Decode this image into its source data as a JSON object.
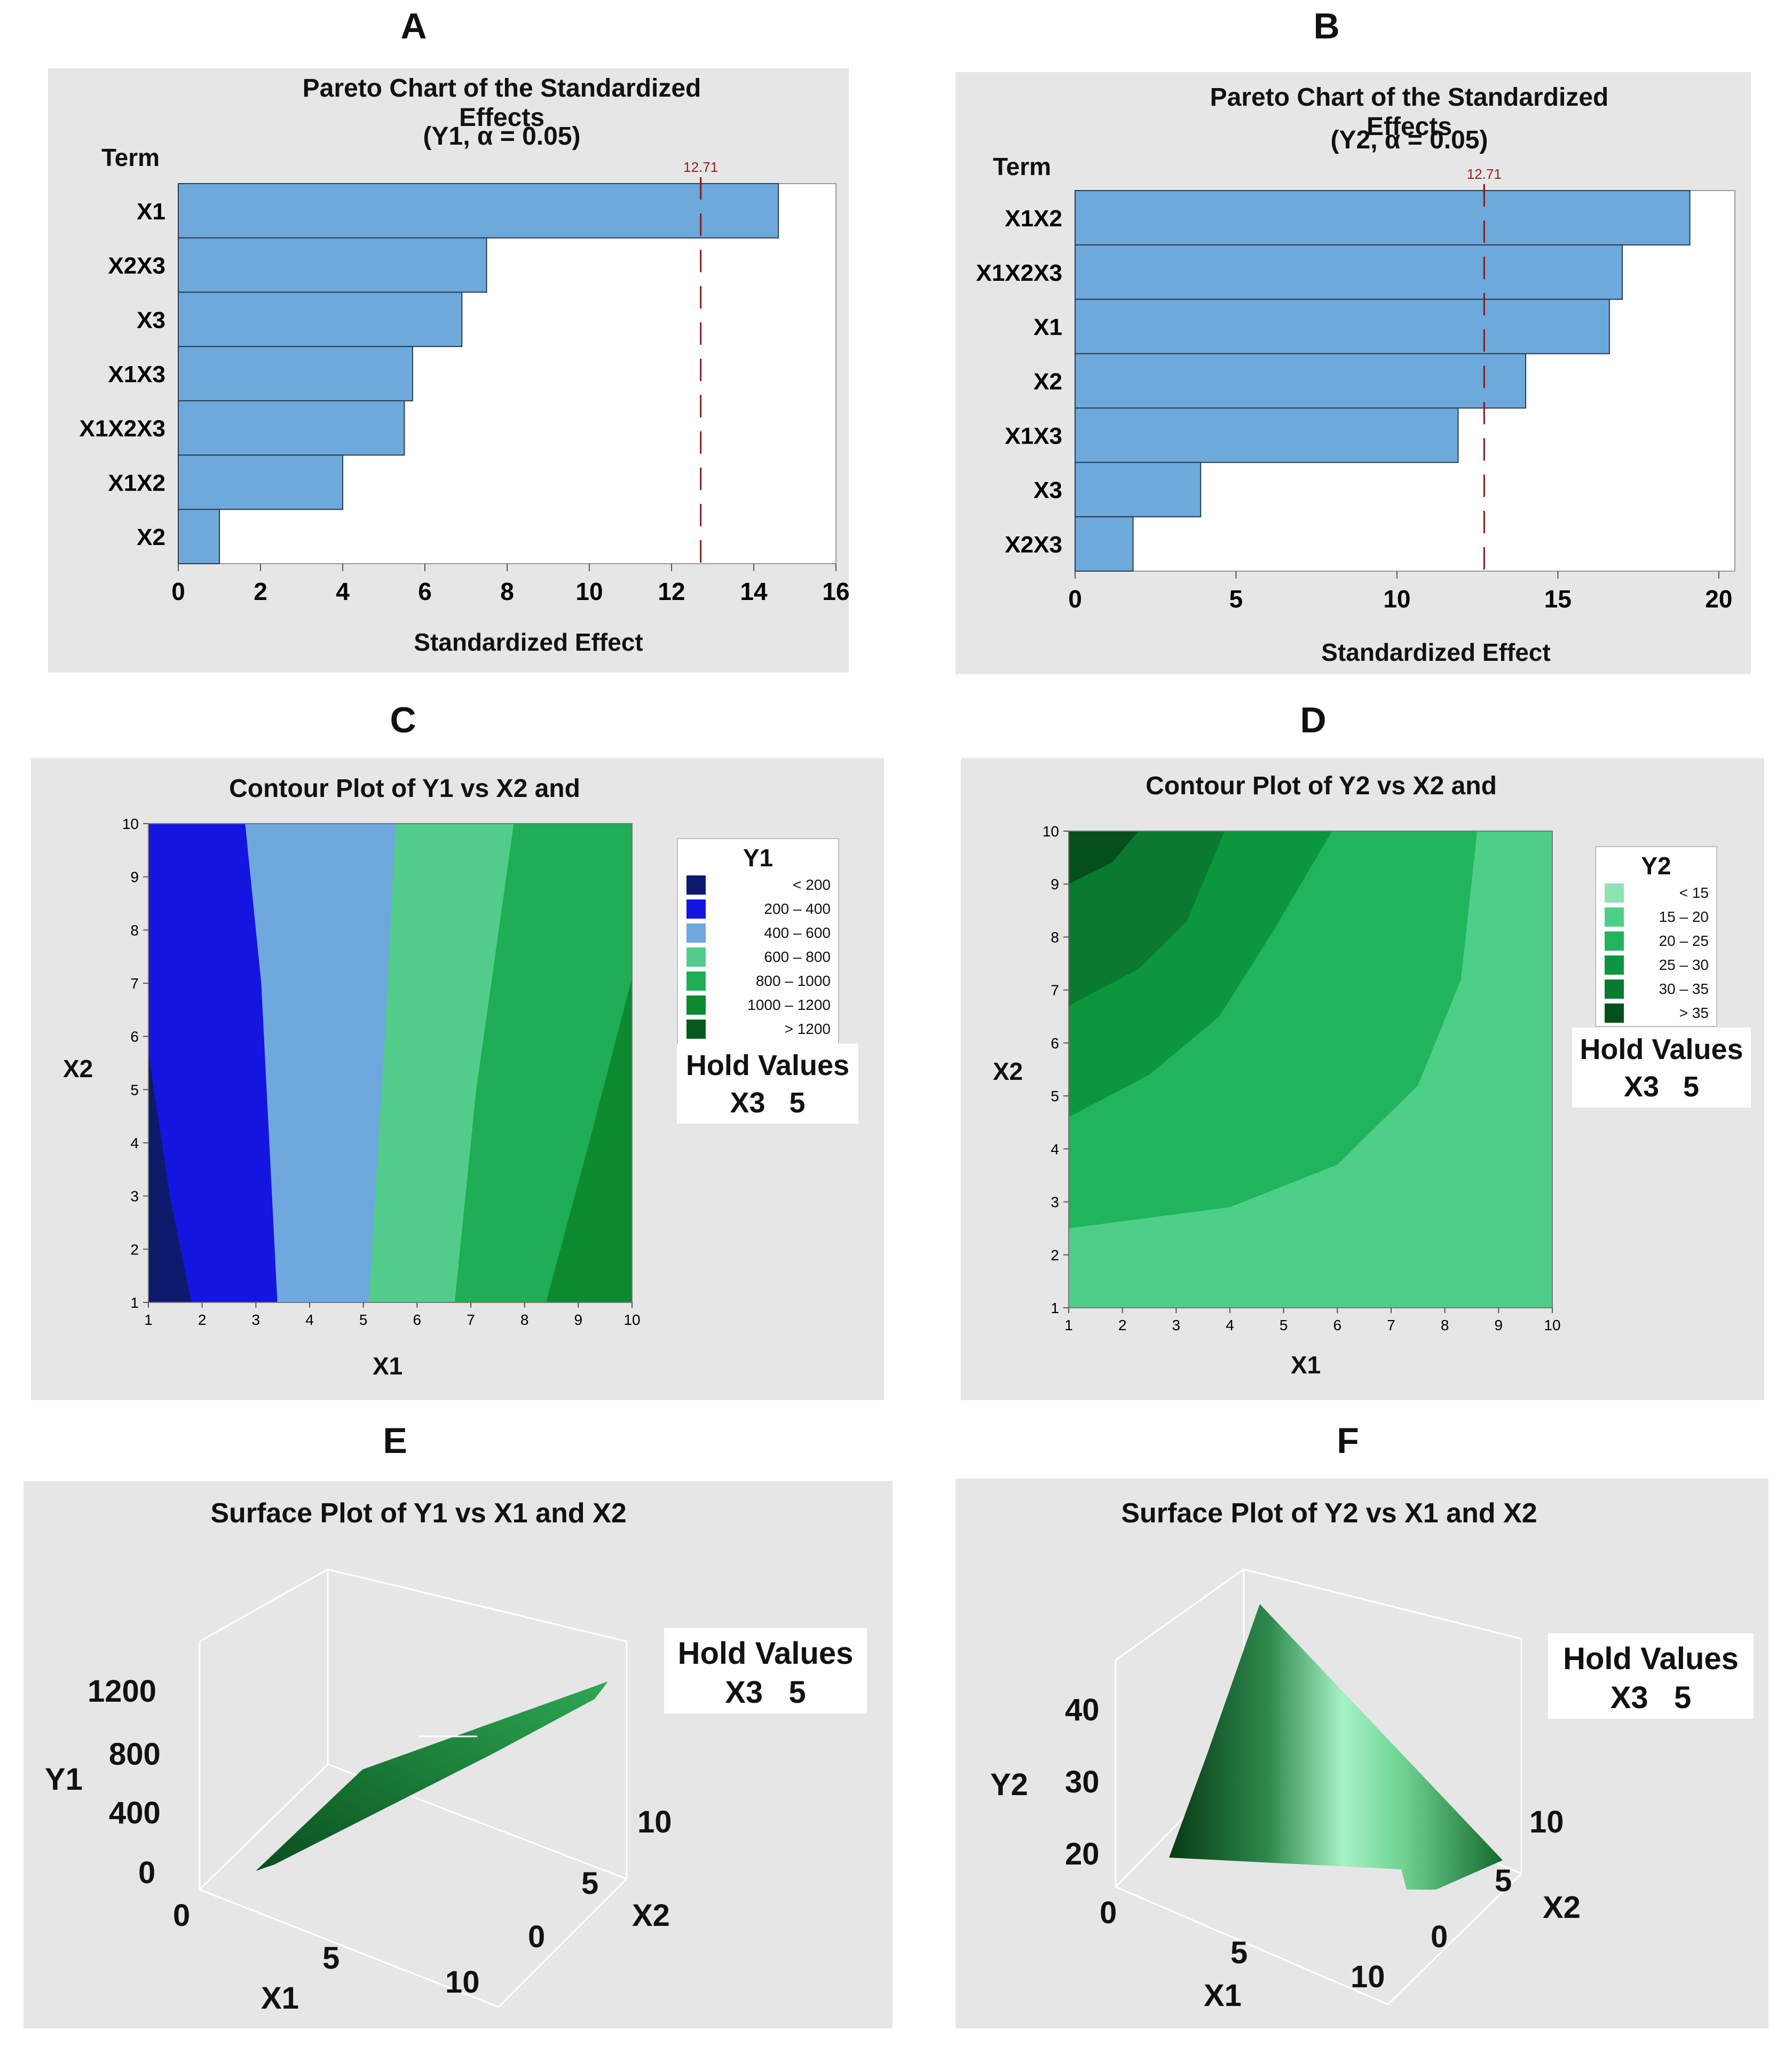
{
  "panel_letters": [
    "A",
    "B",
    "C",
    "D",
    "E",
    "F"
  ],
  "hold_values": {
    "title": "Hold Values",
    "text": "X3   5"
  },
  "chart_data": [
    {
      "id": "A",
      "type": "bar",
      "orientation": "horizontal",
      "title": "Pareto Chart of the Standardized Effects",
      "subtitle": "(Y1, α = 0.05)",
      "ylabel": "Term",
      "xlabel": "Standardized Effect",
      "categories": [
        "X1",
        "X2X3",
        "X3",
        "X1X3",
        "X1X2X3",
        "X1X2",
        "X2"
      ],
      "values": [
        14.6,
        7.5,
        6.9,
        5.7,
        5.5,
        4.0,
        1.0
      ],
      "reference_line": {
        "value": 12.71,
        "label": "12.71"
      },
      "xlim": [
        0,
        16
      ],
      "xticks": [
        "0",
        "2",
        "4",
        "6",
        "8",
        "10",
        "12",
        "14",
        "16"
      ],
      "bar_color": "#6ea9dc"
    },
    {
      "id": "B",
      "type": "bar",
      "orientation": "horizontal",
      "title": "Pareto Chart of the Standardized Effects",
      "subtitle": "(Y2, α = 0.05)",
      "ylabel": "Term",
      "xlabel": "Standardized Effect",
      "categories": [
        "X1X2",
        "X1X2X3",
        "X1",
        "X2",
        "X1X3",
        "X3",
        "X2X3"
      ],
      "values": [
        19.1,
        17.0,
        16.6,
        14.0,
        11.9,
        3.9,
        1.8
      ],
      "reference_line": {
        "value": 12.71,
        "label": "12.71"
      },
      "xlim": [
        0,
        20.5
      ],
      "xticks": [
        "0",
        "5",
        "10",
        "15",
        "20"
      ],
      "bar_color": "#6ea9dc"
    },
    {
      "id": "C",
      "type": "contour",
      "title": "Contour Plot of Y1 vs X2 and",
      "xlabel": "X1",
      "ylabel": "X2",
      "xlim": [
        1,
        10
      ],
      "ylim": [
        1,
        10
      ],
      "xticks": [
        "1",
        "2",
        "3",
        "4",
        "5",
        "6",
        "7",
        "8",
        "9",
        "10"
      ],
      "yticks": [
        "1",
        "2",
        "3",
        "4",
        "5",
        "6",
        "7",
        "8",
        "9",
        "10"
      ],
      "legend_title": "Y1",
      "levels": [
        {
          "label": "< 200",
          "lo": "<",
          "hi": "200",
          "color": "#0d1a6b"
        },
        {
          "label": "200 – 400",
          "lo": "200",
          "hi": "400",
          "color": "#1515e0"
        },
        {
          "label": "400 – 600",
          "lo": "400",
          "hi": "600",
          "color": "#6fa8dc"
        },
        {
          "label": "600 – 800",
          "lo": "600",
          "hi": "800",
          "color": "#52cc8a"
        },
        {
          "label": "800 – 1000",
          "lo": "800",
          "hi": "1000",
          "color": "#1fad55"
        },
        {
          "label": "1000 – 1200",
          "lo": "1000",
          "hi": "1200",
          "color": "#0d8a2f"
        },
        {
          "label": "> 1200",
          "lo": ">",
          "hi": "1200",
          "color": "#065a1f"
        }
      ],
      "boundaries": [
        {
          "level": "200",
          "points": [
            [
              1,
              5.7
            ],
            [
              1.4,
              3
            ],
            [
              1.8,
              1
            ]
          ]
        },
        {
          "level": "400",
          "points": [
            [
              2.8,
              10
            ],
            [
              3.1,
              7
            ],
            [
              3.4,
              1
            ]
          ]
        },
        {
          "level": "600",
          "points": [
            [
              5.6,
              10
            ],
            [
              5.4,
              6
            ],
            [
              5.1,
              1
            ]
          ]
        },
        {
          "level": "800",
          "points": [
            [
              7.8,
              10
            ],
            [
              7.1,
              5
            ],
            [
              6.7,
              1
            ]
          ]
        },
        {
          "level": "1000",
          "points": [
            [
              10,
              7.1
            ],
            [
              9.2,
              4
            ],
            [
              8.4,
              1
            ]
          ]
        }
      ]
    },
    {
      "id": "D",
      "type": "contour",
      "title": "Contour Plot of Y2 vs X2 and",
      "xlabel": "X1",
      "ylabel": "X2",
      "xlim": [
        1,
        10
      ],
      "ylim": [
        1,
        10
      ],
      "xticks": [
        "1",
        "2",
        "3",
        "4",
        "5",
        "6",
        "7",
        "8",
        "9",
        "10"
      ],
      "yticks": [
        "1",
        "2",
        "3",
        "4",
        "5",
        "6",
        "7",
        "8",
        "9",
        "10"
      ],
      "legend_title": "Y2",
      "levels": [
        {
          "label": "< 15",
          "lo": "<",
          "hi": "15",
          "color": "#8ee3b0"
        },
        {
          "label": "15 – 20",
          "lo": "15",
          "hi": "20",
          "color": "#4dcf88"
        },
        {
          "label": "20 – 25",
          "lo": "20",
          "hi": "25",
          "color": "#20b55c"
        },
        {
          "label": "25 – 30",
          "lo": "25",
          "hi": "30",
          "color": "#0c963e"
        },
        {
          "label": "30 – 35",
          "lo": "30",
          "hi": "35",
          "color": "#097a30"
        },
        {
          "label": "> 35",
          "lo": ">",
          "hi": "35",
          "color": "#054f1d"
        }
      ],
      "boundaries": [
        {
          "level": "20",
          "points": [
            [
              1,
              2.5
            ],
            [
              4,
              2.9
            ],
            [
              6,
              3.7
            ],
            [
              7.5,
              5.2
            ],
            [
              8.3,
              7.2
            ],
            [
              8.6,
              10
            ]
          ]
        },
        {
          "level": "25",
          "points": [
            [
              1,
              4.6
            ],
            [
              2.5,
              5.4
            ],
            [
              3.8,
              6.5
            ],
            [
              4.8,
              8.1
            ],
            [
              5.9,
              10
            ]
          ]
        },
        {
          "level": "30",
          "points": [
            [
              1,
              6.7
            ],
            [
              2.3,
              7.4
            ],
            [
              3.2,
              8.3
            ],
            [
              3.9,
              10
            ]
          ]
        },
        {
          "level": "35",
          "points": [
            [
              1,
              9
            ],
            [
              1.8,
              9.4
            ],
            [
              2.3,
              10
            ]
          ]
        }
      ]
    },
    {
      "id": "E",
      "type": "surface",
      "title": "Surface Plot of Y1 vs X1 and X2",
      "xlabel": "X1",
      "ylabel": "X2",
      "zlabel": "Y1",
      "zticks": [
        "1200",
        "800",
        "400",
        "0"
      ],
      "xticks": [
        "0",
        "5",
        "10"
      ],
      "yticks": [
        "0",
        "5",
        "10"
      ]
    },
    {
      "id": "F",
      "type": "surface",
      "title": "Surface Plot of Y2 vs X1 and X2",
      "xlabel": "X1",
      "ylabel": "X2",
      "zlabel": "Y2",
      "zticks": [
        "40",
        "30",
        "20"
      ],
      "xticks": [
        "0",
        "5",
        "10"
      ],
      "yticks": [
        "0",
        "5",
        "10"
      ]
    }
  ]
}
